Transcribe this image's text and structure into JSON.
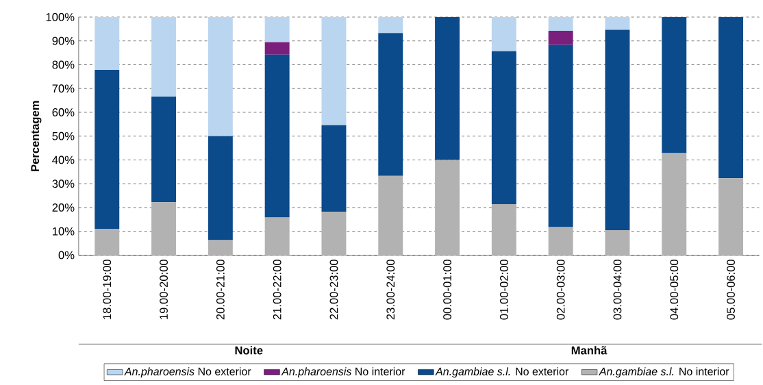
{
  "chart_data": {
    "type": "bar",
    "stacked": true,
    "ylabel": "Percentagem",
    "categories": [
      "18.00-19:00",
      "19.00-20:00",
      "20.00-21:00",
      "21.00-22:00",
      "22.00-23:00",
      "23.00-24:00",
      "00.00-01:00",
      "01.00-02:00",
      "02.00-03:00",
      "03.00-04:00",
      "04.00-05:00",
      "05.00-06:00"
    ],
    "series": [
      {
        "name": "*An.gambiae s.l.* No interior",
        "color": "#b2b2b2",
        "values": [
          11.1,
          22.2,
          6.3,
          15.8,
          18.2,
          33.3,
          40.0,
          21.4,
          11.8,
          10.5,
          42.9,
          32.3
        ]
      },
      {
        "name": "*An.gambiae s.l.* No exterior",
        "color": "#0b4a8b",
        "values": [
          66.7,
          44.4,
          43.7,
          68.4,
          36.4,
          60.0,
          60.0,
          64.3,
          76.5,
          84.2,
          57.1,
          67.7
        ]
      },
      {
        "name": "*An.pharoensis* No interior",
        "color": "#7b1f7c",
        "values": [
          0,
          0,
          0,
          5.3,
          0,
          0,
          0,
          0,
          5.9,
          0,
          0,
          0
        ]
      },
      {
        "name": "*An.pharoensis* No exterior",
        "color": "#bad5f0",
        "values": [
          22.2,
          33.4,
          50.0,
          10.5,
          45.4,
          6.7,
          0,
          14.3,
          5.8,
          5.3,
          0,
          0
        ]
      }
    ],
    "ylim": [
      0,
      100
    ],
    "yticks": [
      {
        "value": 0,
        "label": "0%"
      },
      {
        "value": 10,
        "label": "10%"
      },
      {
        "value": 20,
        "label": "20%"
      },
      {
        "value": 30,
        "label": "30%"
      },
      {
        "value": 40,
        "label": "40%"
      },
      {
        "value": 50,
        "label": "50%"
      },
      {
        "value": 60,
        "label": "60%"
      },
      {
        "value": 70,
        "label": "70%"
      },
      {
        "value": 80,
        "label": "80%"
      },
      {
        "value": 90,
        "label": "90%"
      },
      {
        "value": 100,
        "label": "100%"
      }
    ],
    "grid": "y",
    "legend": "bottom",
    "annotations": [
      "Noite",
      "Manhã"
    ]
  }
}
